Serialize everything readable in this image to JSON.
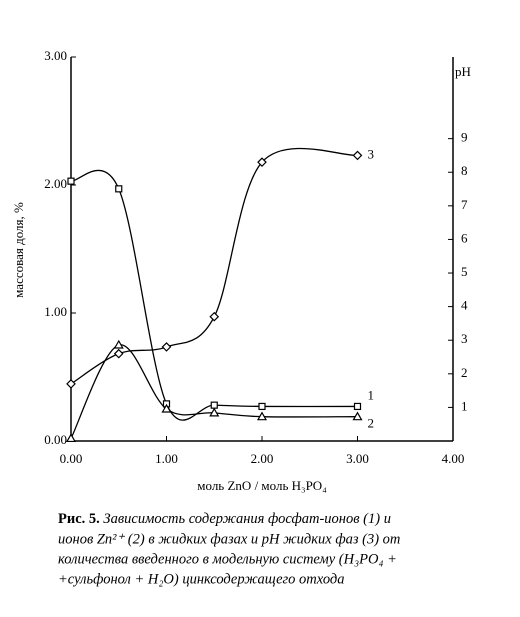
{
  "chart_data": {
    "type": "line",
    "xlabel": "моль ZnO / моль H₃PO₄",
    "ylabel": "массовая доля, %",
    "y2label": "pH",
    "caption_label": "Рис. 5.",
    "caption": [
      "Зависимость содержания фосфат-ионов (1) и",
      "ионов Zn²⁺ (2) в жидких фазах и pH жидких фаз (3) от",
      "количества введенного в модельную систему (H₃PO₄ +",
      "+сульфонол + H₂O) цинксодержащего отхода"
    ],
    "xlim": [
      0,
      4
    ],
    "xticks": [
      {
        "value": 0,
        "label": "0.00"
      },
      {
        "value": 1,
        "label": "1.00"
      },
      {
        "value": 2,
        "label": "2.00"
      },
      {
        "value": 3,
        "label": "3.00"
      },
      {
        "value": 4,
        "label": "4.00"
      }
    ],
    "ylim": [
      0,
      3
    ],
    "yticks": [
      {
        "value": 0,
        "label": "0.00"
      },
      {
        "value": 1,
        "label": "1.00"
      },
      {
        "value": 2,
        "label": "2.00"
      },
      {
        "value": 3,
        "label": "3.00"
      }
    ],
    "y2lim": [
      0,
      11.43
    ],
    "y2ticks": [
      1,
      2,
      3,
      4,
      5,
      6,
      7,
      8,
      9
    ],
    "x": [
      0,
      0.5,
      1,
      1.5,
      2,
      3
    ],
    "series": [
      {
        "name": "1",
        "color": "#000000",
        "marker": "square",
        "values": [
          2.03,
          1.97,
          0.29,
          0.28,
          0.27,
          0.27
        ]
      },
      {
        "name": "2",
        "color": "#000000",
        "marker": "triangle",
        "values": [
          0.02,
          0.75,
          0.25,
          0.22,
          0.19,
          0.19
        ]
      },
      {
        "name": "3",
        "color": "#000000",
        "marker": "diamond",
        "axis": "y2",
        "values": [
          1.7,
          2.6,
          2.8,
          3.7,
          8.3,
          8.5
        ]
      }
    ]
  }
}
